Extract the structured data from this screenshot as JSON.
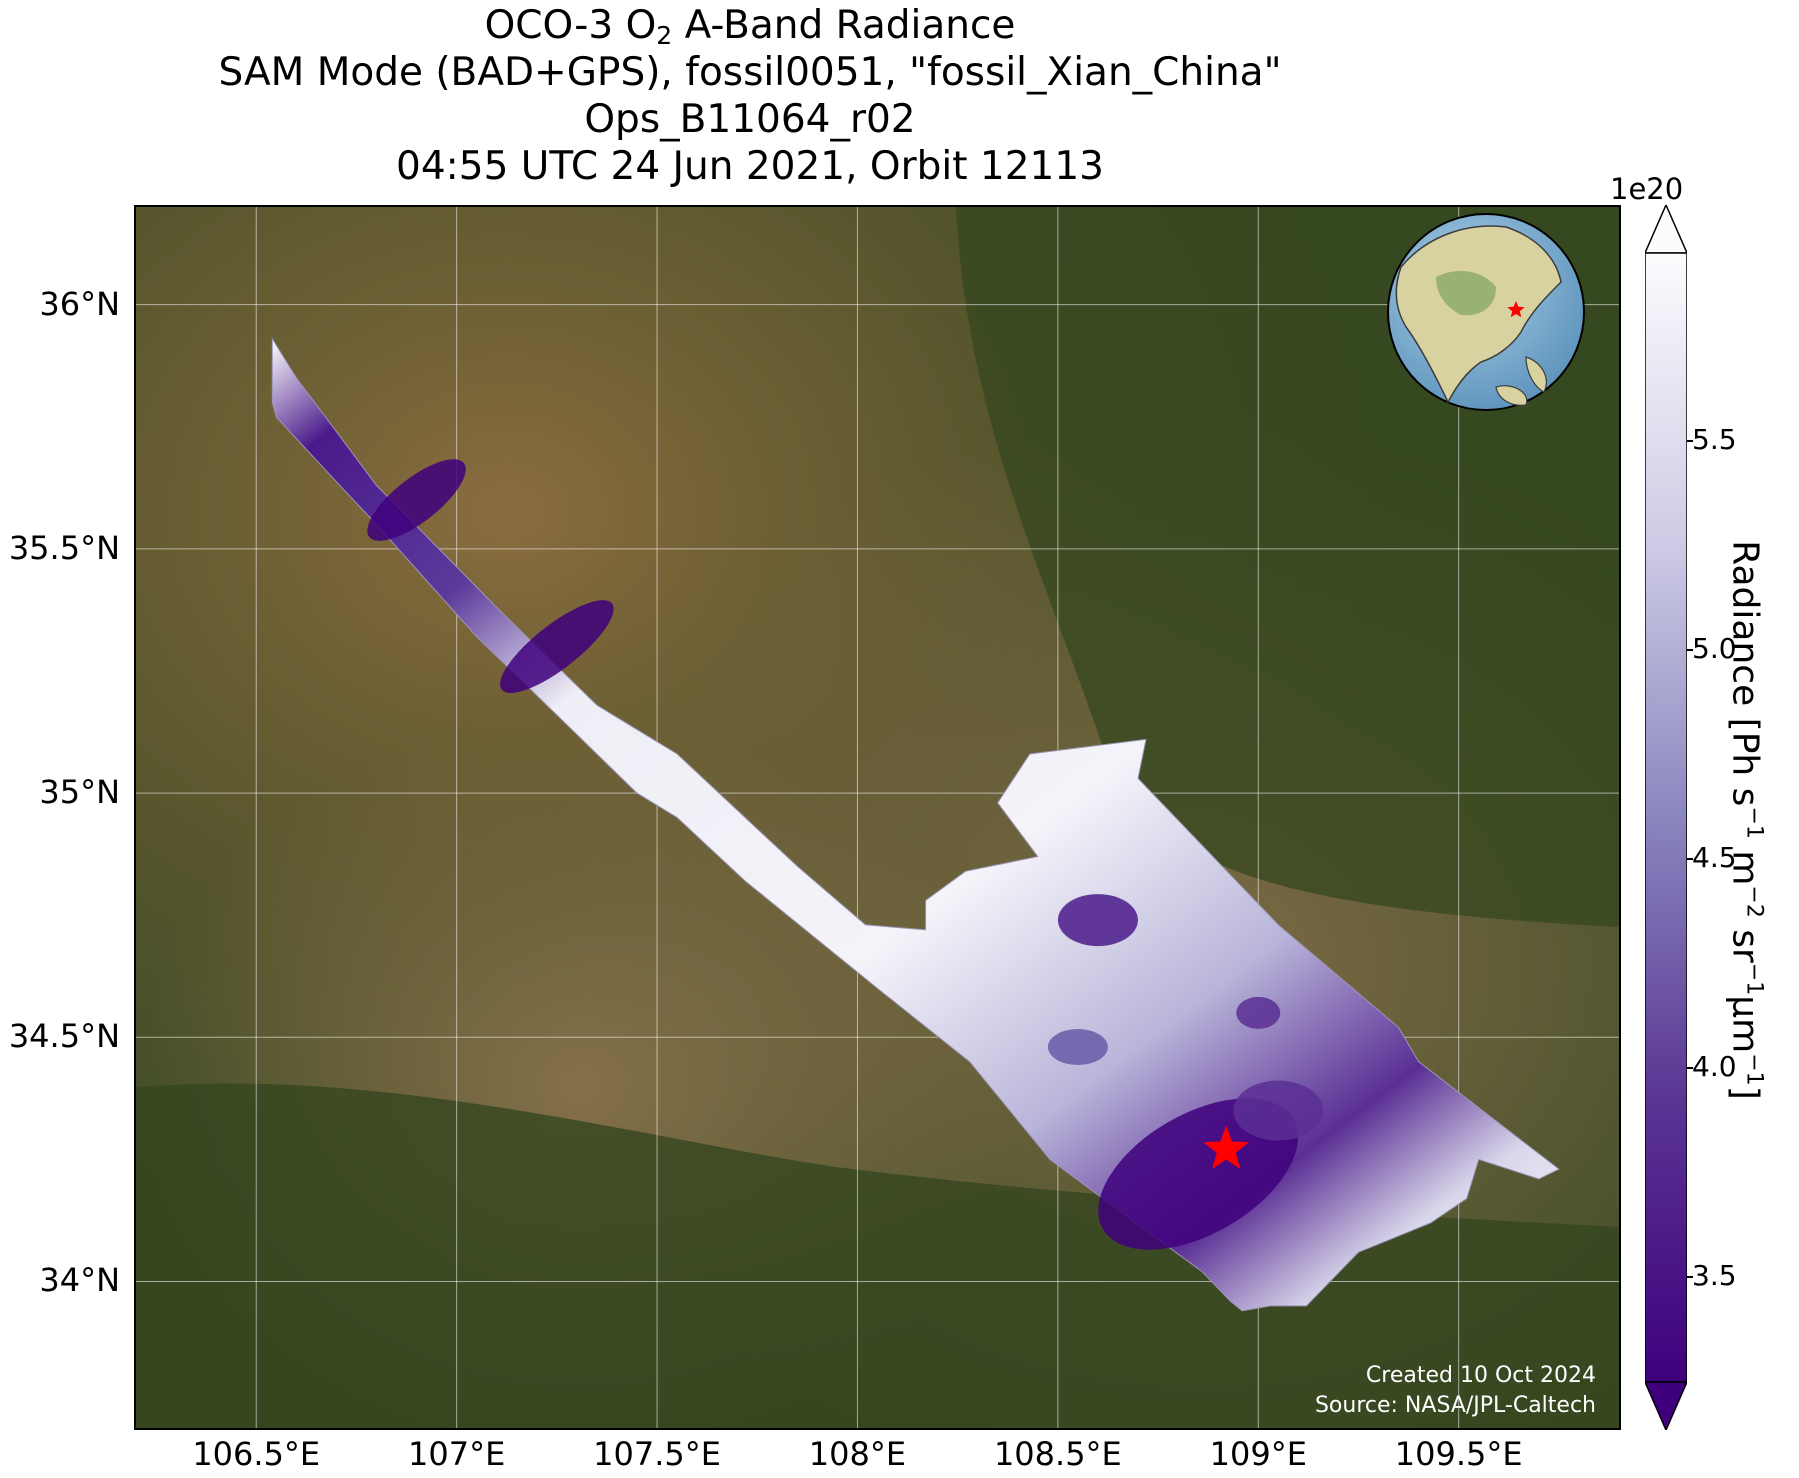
{
  "title": {
    "line1_prefix": "OCO-3 O",
    "line1_sub": "2",
    "line1_suffix": " A-Band Radiance",
    "line2": "SAM Mode (BAD+GPS), fossil0051, \"fossil_Xian_China\"",
    "line3": "Ops_B11064_r02",
    "line4": "04:55 UTC 24 Jun 2021, Orbit 12113"
  },
  "map": {
    "lon_range": [
      106.2,
      109.9
    ],
    "lat_range": [
      33.7,
      36.2
    ],
    "lat_ticks": [
      {
        "value": 34.0,
        "label": "34°N"
      },
      {
        "value": 34.5,
        "label": "34.5°N"
      },
      {
        "value": 35.0,
        "label": "35°N"
      },
      {
        "value": 35.5,
        "label": "35.5°N"
      },
      {
        "value": 36.0,
        "label": "36°N"
      }
    ],
    "lon_ticks": [
      {
        "value": 106.5,
        "label": "106.5°E"
      },
      {
        "value": 107.0,
        "label": "107°E"
      },
      {
        "value": 107.5,
        "label": "107.5°E"
      },
      {
        "value": 108.0,
        "label": "108°E"
      },
      {
        "value": 108.5,
        "label": "108.5°E"
      },
      {
        "value": 109.0,
        "label": "109°E"
      },
      {
        "value": 109.5,
        "label": "109.5°E"
      }
    ],
    "gridlines": true,
    "basemap": "satellite imagery",
    "target_marker": {
      "lon": 108.92,
      "lat": 34.27,
      "symbol": "star",
      "color": "#ff0000"
    },
    "swath_polygon": [
      [
        106.54,
        35.93
      ],
      [
        106.6,
        35.85
      ],
      [
        106.8,
        35.63
      ],
      [
        107.1,
        35.38
      ],
      [
        107.35,
        35.18
      ],
      [
        107.55,
        35.08
      ],
      [
        107.85,
        34.85
      ],
      [
        108.02,
        34.73
      ],
      [
        108.17,
        34.72
      ],
      [
        108.17,
        34.78
      ],
      [
        108.27,
        34.84
      ],
      [
        108.45,
        34.87
      ],
      [
        108.35,
        34.98
      ],
      [
        108.43,
        35.08
      ],
      [
        108.72,
        35.11
      ],
      [
        108.7,
        35.03
      ],
      [
        109.05,
        34.73
      ],
      [
        109.35,
        34.52
      ],
      [
        109.4,
        34.45
      ],
      [
        109.75,
        34.23
      ],
      [
        109.7,
        34.21
      ],
      [
        109.55,
        34.25
      ],
      [
        109.52,
        34.17
      ],
      [
        109.43,
        34.12
      ],
      [
        109.25,
        34.06
      ],
      [
        109.12,
        33.95
      ],
      [
        109.03,
        33.95
      ],
      [
        108.96,
        33.94
      ],
      [
        108.93,
        33.96
      ],
      [
        108.86,
        34.02
      ],
      [
        108.48,
        34.25
      ],
      [
        108.28,
        34.45
      ],
      [
        108.05,
        34.6
      ],
      [
        107.9,
        34.7
      ],
      [
        107.72,
        34.82
      ],
      [
        107.55,
        34.95
      ],
      [
        107.45,
        35.0
      ],
      [
        107.3,
        35.12
      ],
      [
        107.05,
        35.32
      ],
      [
        106.8,
        35.55
      ],
      [
        106.72,
        35.62
      ],
      [
        106.55,
        35.77
      ],
      [
        106.54,
        35.8
      ]
    ],
    "inset_globe": {
      "marker": "star",
      "marker_color": "#ff0000"
    }
  },
  "colorbar": {
    "colormap": "Purples_r",
    "vmin": 3.25,
    "vmax": 5.95,
    "extend": "both",
    "ticks": [
      {
        "value": 3.5,
        "label": "3.5"
      },
      {
        "value": 4.0,
        "label": "4.0"
      },
      {
        "value": 4.5,
        "label": "4.5"
      },
      {
        "value": 5.0,
        "label": "5.0"
      },
      {
        "value": 5.5,
        "label": "5.5"
      }
    ],
    "exponent": "1e20",
    "label_main": "Radiance [Ph s",
    "label_sup1": "−1",
    "label_mid1": " m",
    "label_sup2": "−2",
    "label_mid2": " sr",
    "label_sup3": "−1",
    "label_mid3": "μm",
    "label_sup4": "−1",
    "label_end": "]"
  },
  "credits": {
    "created": "Created 10 Oct 2024",
    "source": "Source: NASA/JPL-Caltech"
  },
  "colors": {
    "terrain_dark": "#3a4a22",
    "terrain_light": "#8a6d3e",
    "radiance_low": "#3f007d",
    "radiance_high": "#fcfbfd"
  }
}
